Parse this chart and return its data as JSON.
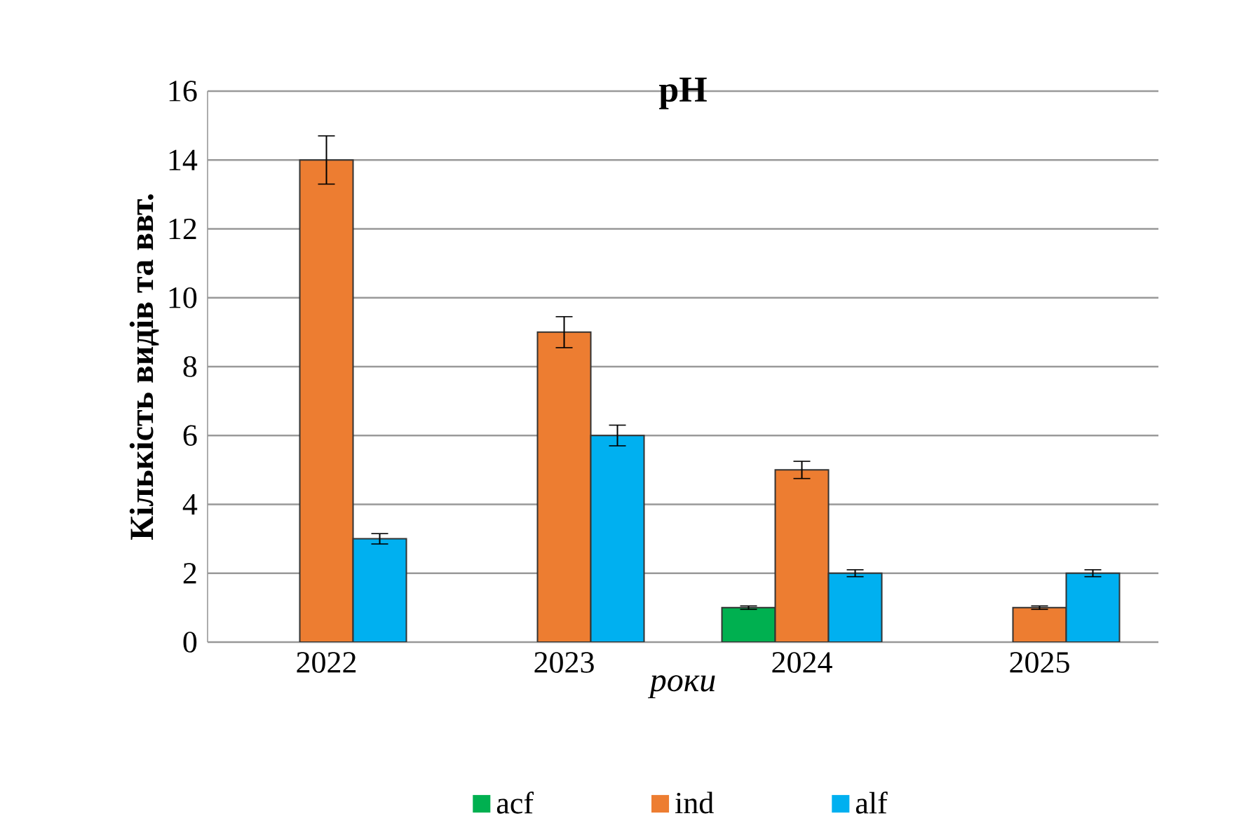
{
  "chart_data": {
    "type": "bar",
    "title": "pH",
    "xlabel": "роки",
    "ylabel": "Кількість видів та ввт.",
    "categories": [
      "2022",
      "2023",
      "2024",
      "2025"
    ],
    "series": [
      {
        "name": "acf",
        "color": "#00b050",
        "values": [
          null,
          null,
          1,
          null
        ],
        "errors": [
          null,
          null,
          0.05,
          null
        ]
      },
      {
        "name": "ind",
        "color": "#ed7d31",
        "values": [
          14,
          9,
          5,
          1
        ],
        "errors": [
          0.7,
          0.45,
          0.25,
          0.05
        ]
      },
      {
        "name": "alf",
        "color": "#00b0f0",
        "values": [
          3,
          6,
          2,
          2
        ],
        "errors": [
          0.15,
          0.3,
          0.1,
          0.1
        ]
      }
    ],
    "ylim": [
      0,
      16
    ],
    "yticks": [
      0,
      2,
      4,
      6,
      8,
      10,
      12,
      14,
      16
    ],
    "grid": "y",
    "legend": "bottom"
  }
}
